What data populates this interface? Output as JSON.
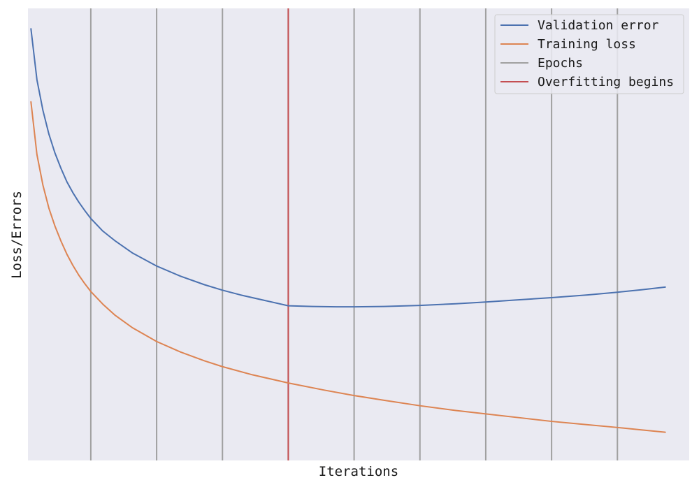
{
  "chart_data": {
    "type": "line",
    "title": "",
    "xlabel": "Iterations",
    "ylabel": "Loss/Errors",
    "x_ticks_shown": false,
    "y_ticks_shown": false,
    "grid": false,
    "background": "#eaeaf2",
    "legend": {
      "placement": "top-right",
      "entries": [
        {
          "label": "Validation error",
          "color": "#4c72b0"
        },
        {
          "label": "Training loss",
          "color": "#dd8452"
        },
        {
          "label": "Epochs",
          "color": "#a0a0a0"
        },
        {
          "label": "Overfitting begins",
          "color": "#c44e52"
        }
      ]
    },
    "xlim": [
      0.5,
      111
    ],
    "ylim": [
      0.05,
      1.38
    ],
    "epochs": [
      11,
      22,
      33,
      44,
      55,
      66,
      77,
      88,
      99
    ],
    "overfitting_begins": 44,
    "series": [
      {
        "name": "Validation error",
        "color": "#4c72b0",
        "points": [
          [
            1,
            1.32
          ],
          [
            2,
            1.17
          ],
          [
            3,
            1.08
          ],
          [
            4,
            1.01
          ],
          [
            5,
            0.955
          ],
          [
            6,
            0.91
          ],
          [
            7,
            0.87
          ],
          [
            8,
            0.838
          ],
          [
            9,
            0.81
          ],
          [
            10,
            0.785
          ],
          [
            11,
            0.762
          ],
          [
            13,
            0.725
          ],
          [
            15,
            0.697
          ],
          [
            18,
            0.66
          ],
          [
            22,
            0.622
          ],
          [
            26,
            0.592
          ],
          [
            30,
            0.567
          ],
          [
            33,
            0.551
          ],
          [
            36,
            0.537
          ],
          [
            40,
            0.521
          ],
          [
            44,
            0.505
          ],
          [
            48,
            0.503
          ],
          [
            52,
            0.502
          ],
          [
            55,
            0.502
          ],
          [
            60,
            0.503
          ],
          [
            66,
            0.506
          ],
          [
            72,
            0.511
          ],
          [
            77,
            0.516
          ],
          [
            82,
            0.522
          ],
          [
            88,
            0.529
          ],
          [
            94,
            0.537
          ],
          [
            99,
            0.545
          ],
          [
            103,
            0.552
          ],
          [
            107,
            0.56
          ]
        ]
      },
      {
        "name": "Training loss",
        "color": "#dd8452",
        "points": [
          [
            1,
            1.105
          ],
          [
            2,
            0.95
          ],
          [
            3,
            0.86
          ],
          [
            4,
            0.792
          ],
          [
            5,
            0.74
          ],
          [
            6,
            0.696
          ],
          [
            7,
            0.657
          ],
          [
            8,
            0.624
          ],
          [
            9,
            0.595
          ],
          [
            10,
            0.57
          ],
          [
            11,
            0.547
          ],
          [
            13,
            0.51
          ],
          [
            15,
            0.478
          ],
          [
            18,
            0.44
          ],
          [
            22,
            0.4
          ],
          [
            26,
            0.369
          ],
          [
            30,
            0.343
          ],
          [
            33,
            0.326
          ],
          [
            38,
            0.302
          ],
          [
            44,
            0.278
          ],
          [
            50,
            0.257
          ],
          [
            55,
            0.241
          ],
          [
            60,
            0.227
          ],
          [
            66,
            0.211
          ],
          [
            72,
            0.197
          ],
          [
            77,
            0.187
          ],
          [
            83,
            0.175
          ],
          [
            88,
            0.165
          ],
          [
            94,
            0.155
          ],
          [
            99,
            0.147
          ],
          [
            103,
            0.14
          ],
          [
            107,
            0.133
          ]
        ]
      }
    ]
  }
}
